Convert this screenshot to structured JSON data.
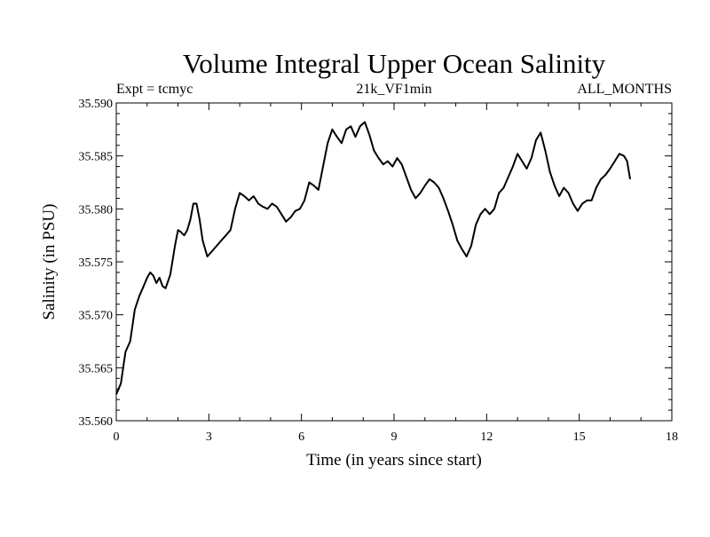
{
  "chart_data": {
    "type": "line",
    "title": "Volume Integral Upper Ocean Salinity",
    "subtitle_left": "Expt = tcmyc",
    "subtitle_center": "21k_VF1min",
    "subtitle_right": "ALL_MONTHS",
    "xlabel": "Time (in years since start)",
    "ylabel": "Salinity (in PSU)",
    "xlim": [
      0,
      18
    ],
    "ylim": [
      35.56,
      35.59
    ],
    "xticks": [
      0,
      3,
      6,
      9,
      12,
      15,
      18
    ],
    "xtick_labels": [
      "0",
      "3",
      "6",
      "9",
      "12",
      "15",
      "18"
    ],
    "yticks": [
      35.56,
      35.565,
      35.57,
      35.575,
      35.58,
      35.585,
      35.59
    ],
    "ytick_labels": [
      "35.560",
      "35.565",
      "35.570",
      "35.575",
      "35.580",
      "35.585",
      "35.590"
    ],
    "line_color": "#000000",
    "series": [
      {
        "name": "salinity",
        "x": [
          0.0,
          0.15,
          0.3,
          0.45,
          0.6,
          0.75,
          0.9,
          1.0,
          1.1,
          1.2,
          1.3,
          1.4,
          1.5,
          1.6,
          1.75,
          1.9,
          2.0,
          2.1,
          2.2,
          2.3,
          2.4,
          2.5,
          2.6,
          2.7,
          2.8,
          2.95,
          3.1,
          3.25,
          3.4,
          3.55,
          3.7,
          3.85,
          4.0,
          4.15,
          4.3,
          4.45,
          4.6,
          4.75,
          4.9,
          5.05,
          5.2,
          5.35,
          5.5,
          5.65,
          5.8,
          5.95,
          6.1,
          6.25,
          6.4,
          6.55,
          6.7,
          6.85,
          7.0,
          7.15,
          7.3,
          7.45,
          7.6,
          7.75,
          7.9,
          8.05,
          8.2,
          8.35,
          8.5,
          8.65,
          8.8,
          8.95,
          9.1,
          9.25,
          9.4,
          9.55,
          9.7,
          9.85,
          10.0,
          10.15,
          10.3,
          10.45,
          10.6,
          10.75,
          10.9,
          11.05,
          11.2,
          11.35,
          11.5,
          11.65,
          11.8,
          11.95,
          12.1,
          12.25,
          12.4,
          12.55,
          12.7,
          12.85,
          13.0,
          13.15,
          13.3,
          13.45,
          13.6,
          13.75,
          13.9,
          14.05,
          14.2,
          14.35,
          14.5,
          14.65,
          14.8,
          14.95,
          15.1,
          15.25,
          15.4,
          15.55,
          15.7,
          15.85,
          16.0,
          16.15,
          16.3,
          16.45,
          16.55,
          16.65
        ],
        "values": [
          35.5625,
          35.5635,
          35.5665,
          35.5675,
          35.5705,
          35.5718,
          35.5728,
          35.5735,
          35.574,
          35.5737,
          35.573,
          35.5735,
          35.5727,
          35.5725,
          35.5738,
          35.5765,
          35.578,
          35.5778,
          35.5775,
          35.578,
          35.579,
          35.5805,
          35.5805,
          35.579,
          35.577,
          35.5755,
          35.576,
          35.5765,
          35.577,
          35.5775,
          35.578,
          35.58,
          35.5815,
          35.5812,
          35.5808,
          35.5812,
          35.5805,
          35.5802,
          35.58,
          35.5805,
          35.5802,
          35.5795,
          35.5788,
          35.5792,
          35.5798,
          35.58,
          35.5808,
          35.5825,
          35.5822,
          35.5818,
          35.584,
          35.5862,
          35.5875,
          35.5868,
          35.5862,
          35.5875,
          35.5878,
          35.5868,
          35.5878,
          35.5882,
          35.587,
          35.5855,
          35.5848,
          35.5842,
          35.5845,
          35.584,
          35.5848,
          35.5842,
          35.583,
          35.5818,
          35.581,
          35.5815,
          35.5822,
          35.5828,
          35.5825,
          35.582,
          35.581,
          35.5798,
          35.5785,
          35.577,
          35.5762,
          35.5755,
          35.5765,
          35.5785,
          35.5795,
          35.58,
          35.5795,
          35.58,
          35.5815,
          35.582,
          35.583,
          35.584,
          35.5852,
          35.5845,
          35.5838,
          35.5848,
          35.5865,
          35.5872,
          35.5855,
          35.5835,
          35.5822,
          35.5812,
          35.582,
          35.5815,
          35.5805,
          35.5798,
          35.5805,
          35.5808,
          35.5808,
          35.582,
          35.5828,
          35.5832,
          35.5838,
          35.5845,
          35.5852,
          35.585,
          35.5845,
          35.5828
        ]
      }
    ]
  }
}
